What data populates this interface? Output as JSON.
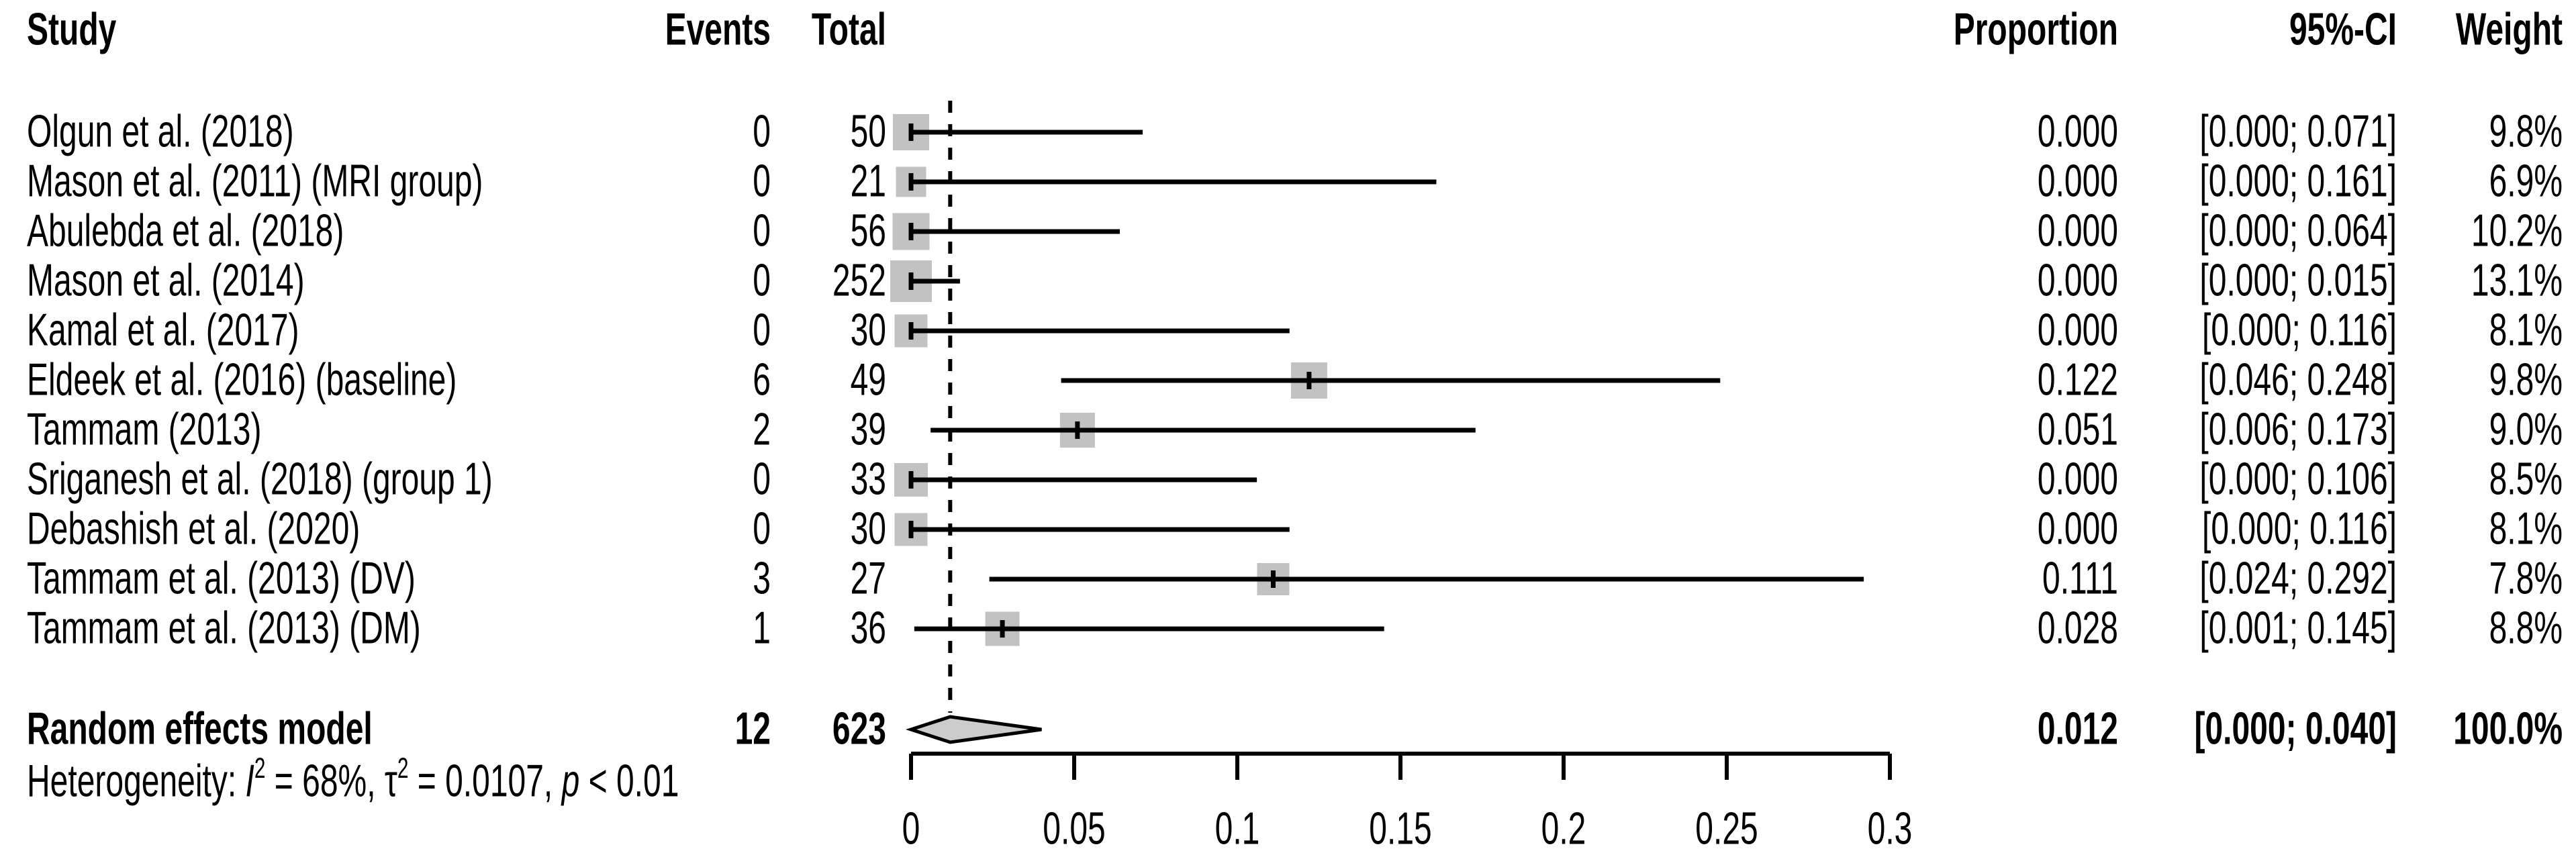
{
  "header": {
    "study": "Study",
    "events": "Events",
    "total": "Total",
    "proportion": "Proportion",
    "ci": "95%-CI",
    "weight": "Weight"
  },
  "chart_data": {
    "type": "forest",
    "title": "",
    "xlabel": "",
    "x_axis": {
      "min": 0,
      "max": 0.3,
      "ticks": [
        0,
        0.05,
        0.1,
        0.15,
        0.2,
        0.25,
        0.3
      ],
      "tick_labels": [
        "0",
        "0.05",
        "0.1",
        "0.15",
        "0.2",
        "0.25",
        "0.3"
      ]
    },
    "reference_line": 0.012,
    "studies": [
      {
        "label": "Olgun et al. (2018)",
        "events": "0",
        "total": "50",
        "proportion": "0.000",
        "ci": "[0.000; 0.071]",
        "weight": "9.8%",
        "p": 0.0,
        "lo": 0.0,
        "hi": 0.071,
        "w": 9.8
      },
      {
        "label": "Mason et al. (2011) (MRI group)",
        "events": "0",
        "total": "21",
        "proportion": "0.000",
        "ci": "[0.000; 0.161]",
        "weight": "6.9%",
        "p": 0.0,
        "lo": 0.0,
        "hi": 0.161,
        "w": 6.9
      },
      {
        "label": "Abulebda et al. (2018)",
        "events": "0",
        "total": "56",
        "proportion": "0.000",
        "ci": "[0.000; 0.064]",
        "weight": "10.2%",
        "p": 0.0,
        "lo": 0.0,
        "hi": 0.064,
        "w": 10.2
      },
      {
        "label": "Mason et al. (2014)",
        "events": "0",
        "total": "252",
        "proportion": "0.000",
        "ci": "[0.000; 0.015]",
        "weight": "13.1%",
        "p": 0.0,
        "lo": 0.0,
        "hi": 0.015,
        "w": 13.1
      },
      {
        "label": "Kamal et al. (2017)",
        "events": "0",
        "total": "30",
        "proportion": "0.000",
        "ci": "[0.000; 0.116]",
        "weight": "8.1%",
        "p": 0.0,
        "lo": 0.0,
        "hi": 0.116,
        "w": 8.1
      },
      {
        "label": "Eldeek et al. (2016) (baseline)",
        "events": "6",
        "total": "49",
        "proportion": "0.122",
        "ci": "[0.046; 0.248]",
        "weight": "9.8%",
        "p": 0.122,
        "lo": 0.046,
        "hi": 0.248,
        "w": 9.8
      },
      {
        "label": "Tammam (2013)",
        "events": "2",
        "total": "39",
        "proportion": "0.051",
        "ci": "[0.006; 0.173]",
        "weight": "9.0%",
        "p": 0.051,
        "lo": 0.006,
        "hi": 0.173,
        "w": 9.0
      },
      {
        "label": "Sriganesh et al. (2018) (group 1)",
        "events": "0",
        "total": "33",
        "proportion": "0.000",
        "ci": "[0.000; 0.106]",
        "weight": "8.5%",
        "p": 0.0,
        "lo": 0.0,
        "hi": 0.106,
        "w": 8.5
      },
      {
        "label": "Debashish et al. (2020)",
        "events": "0",
        "total": "30",
        "proportion": "0.000",
        "ci": "[0.000; 0.116]",
        "weight": "8.1%",
        "p": 0.0,
        "lo": 0.0,
        "hi": 0.116,
        "w": 8.1
      },
      {
        "label": "Tammam et al. (2013) (DV)",
        "events": "3",
        "total": "27",
        "proportion": "0.111",
        "ci": "[0.024; 0.292]",
        "weight": "7.8%",
        "p": 0.111,
        "lo": 0.024,
        "hi": 0.292,
        "w": 7.8
      },
      {
        "label": "Tammam et al. (2013) (DM)",
        "events": "1",
        "total": "36",
        "proportion": "0.028",
        "ci": "[0.001; 0.145]",
        "weight": "8.8%",
        "p": 0.028,
        "lo": 0.001,
        "hi": 0.145,
        "w": 8.8
      }
    ],
    "pooled": {
      "label": "Random effects model",
      "events": "12",
      "total": "623",
      "proportion": "0.012",
      "ci": "[0.000; 0.040]",
      "weight": "100.0%",
      "p": 0.012,
      "lo": 0.0,
      "hi": 0.04
    },
    "heterogeneity": {
      "plain": "Heterogeneity: I² = 68%, τ² = 0.0107, p < 0.01",
      "i2": "68%",
      "tau2": "0.0107",
      "p_value": "< 0.01",
      "segments": [
        [
          "Heterogeneity: ",
          "n"
        ],
        [
          "I",
          "i"
        ],
        [
          "2",
          "s"
        ],
        [
          " = 68%, ",
          "n"
        ],
        [
          "τ",
          "n"
        ],
        [
          "2",
          "s"
        ],
        [
          " = 0.0107, ",
          "n"
        ],
        [
          "p",
          "i"
        ],
        [
          " < 0.01",
          "n"
        ]
      ]
    }
  },
  "colors": {
    "marker_fill": "#c2c2c2",
    "diamond_fill": "#cccccc",
    "line": "#000000",
    "background": "#ffffff"
  }
}
